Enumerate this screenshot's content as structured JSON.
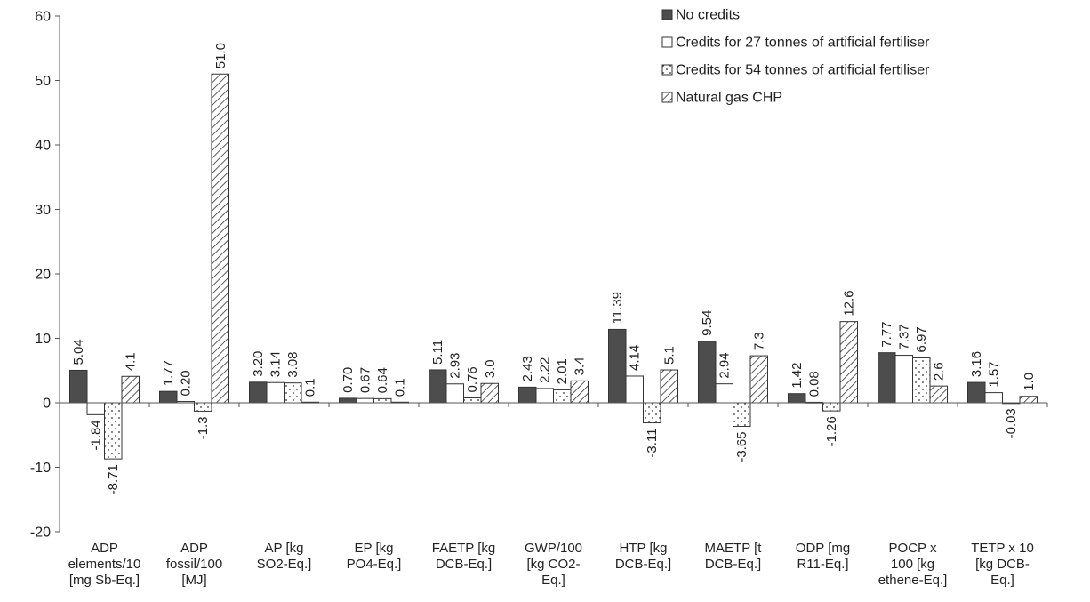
{
  "chart_data": {
    "type": "bar",
    "title": "",
    "xlabel": "",
    "ylabel": "",
    "ylim": [
      -20,
      60
    ],
    "yticks": [
      -20,
      -10,
      0,
      10,
      20,
      30,
      40,
      50,
      60
    ],
    "grid": false,
    "legend_position": "top-right",
    "categories": [
      [
        "ADP",
        "elements/10",
        "[mg Sb-Eq.]"
      ],
      [
        "ADP",
        "fossil/100",
        "[MJ]"
      ],
      [
        "AP [kg",
        "SO2-Eq.]"
      ],
      [
        "EP [kg",
        "PO4-Eq.]"
      ],
      [
        "FAETP [kg",
        "DCB-Eq.]"
      ],
      [
        "GWP/100",
        "[kg CO2-",
        "Eq.]"
      ],
      [
        "HTP [kg",
        "DCB-Eq.]"
      ],
      [
        "MAETP [t",
        "DCB-Eq.]"
      ],
      [
        "ODP [mg",
        "R11-Eq.]"
      ],
      [
        "POCP x",
        "100 [kg",
        "ethene-Eq.]"
      ],
      [
        "TETP x 10",
        "[kg DCB-",
        "Eq.]"
      ]
    ],
    "series": [
      {
        "name": "No credits",
        "pattern": "solid",
        "color": "#4d4d4d",
        "values": [
          5.04,
          1.77,
          3.2,
          0.7,
          5.11,
          2.43,
          11.39,
          9.54,
          1.42,
          7.77,
          3.16
        ],
        "labels": [
          "5.04",
          "1.77",
          "3.20",
          "0.70",
          "5.11",
          "2.43",
          "11.39",
          "9.54",
          "1.42",
          "7.77",
          "3.16"
        ]
      },
      {
        "name": "Credits for 27 tonnes of artificial fertiliser",
        "pattern": "white",
        "color": "#ffffff",
        "values": [
          -1.84,
          0.2,
          3.14,
          0.67,
          2.93,
          2.22,
          4.14,
          2.94,
          0.08,
          7.37,
          1.57
        ],
        "labels": [
          "-1.84",
          "0.20",
          "3.14",
          "0.67",
          "2.93",
          "2.22",
          "4.14",
          "2.94",
          "0.08",
          "7.37",
          "1.57"
        ]
      },
      {
        "name": "Credits for 54 tonnes of artificial fertiliser",
        "pattern": "dotted",
        "color": "#ffffff",
        "values": [
          -8.71,
          -1.3,
          3.08,
          0.64,
          0.76,
          2.01,
          -3.11,
          -3.65,
          -1.26,
          6.97,
          -0.03
        ],
        "labels": [
          "-8.71",
          "-1.3",
          "3.08",
          "0.64",
          "0.76",
          "2.01",
          "-3.11",
          "-3.65",
          "-1.26",
          "6.97",
          "-0.03"
        ]
      },
      {
        "name": "Natural gas CHP",
        "pattern": "hatched",
        "color": "#ffffff",
        "values": [
          4.1,
          51.0,
          0.1,
          0.1,
          3.0,
          3.4,
          5.1,
          7.3,
          12.6,
          2.6,
          1.0
        ],
        "labels": [
          "4.1",
          "51.0",
          "0.1",
          "0.1",
          "3.0",
          "3.4",
          "5.1",
          "7.3",
          "12.6",
          "2.6",
          "1.0"
        ]
      }
    ]
  }
}
